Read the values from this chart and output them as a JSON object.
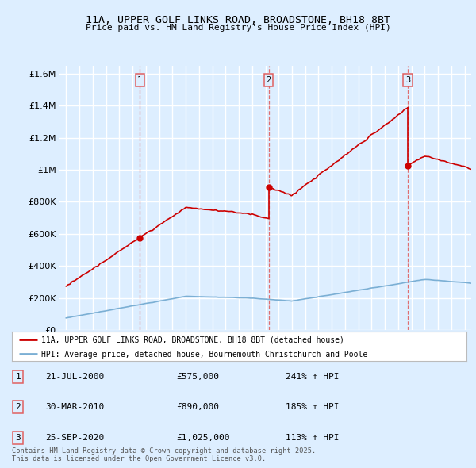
{
  "title1": "11A, UPPER GOLF LINKS ROAD, BROADSTONE, BH18 8BT",
  "title2": "Price paid vs. HM Land Registry's House Price Index (HPI)",
  "bg_color": "#ddeeff",
  "grid_color": "#ffffff",
  "red_color": "#cc0000",
  "blue_color": "#7bafd4",
  "dashed_color": "#e06060",
  "ylim": [
    0,
    1650000
  ],
  "yticks": [
    0,
    200000,
    400000,
    600000,
    800000,
    1000000,
    1200000,
    1400000,
    1600000
  ],
  "ytick_labels": [
    "£0",
    "£200K",
    "£400K",
    "£600K",
    "£800K",
    "£1M",
    "£1.2M",
    "£1.4M",
    "£1.6M"
  ],
  "sale1_date": 2000.55,
  "sale1_price": 575000,
  "sale2_date": 2010.24,
  "sale2_price": 890000,
  "sale3_date": 2020.73,
  "sale3_price": 1025000,
  "xmin": 1994.5,
  "xmax": 2025.5,
  "legend1": "11A, UPPER GOLF LINKS ROAD, BROADSTONE, BH18 8BT (detached house)",
  "legend2": "HPI: Average price, detached house, Bournemouth Christchurch and Poole",
  "table_rows": [
    [
      "1",
      "21-JUL-2000",
      "£575,000",
      "241% ↑ HPI"
    ],
    [
      "2",
      "30-MAR-2010",
      "£890,000",
      "185% ↑ HPI"
    ],
    [
      "3",
      "25-SEP-2020",
      "£1,025,000",
      "113% ↑ HPI"
    ]
  ],
  "footnote": "Contains HM Land Registry data © Crown copyright and database right 2025.\nThis data is licensed under the Open Government Licence v3.0."
}
